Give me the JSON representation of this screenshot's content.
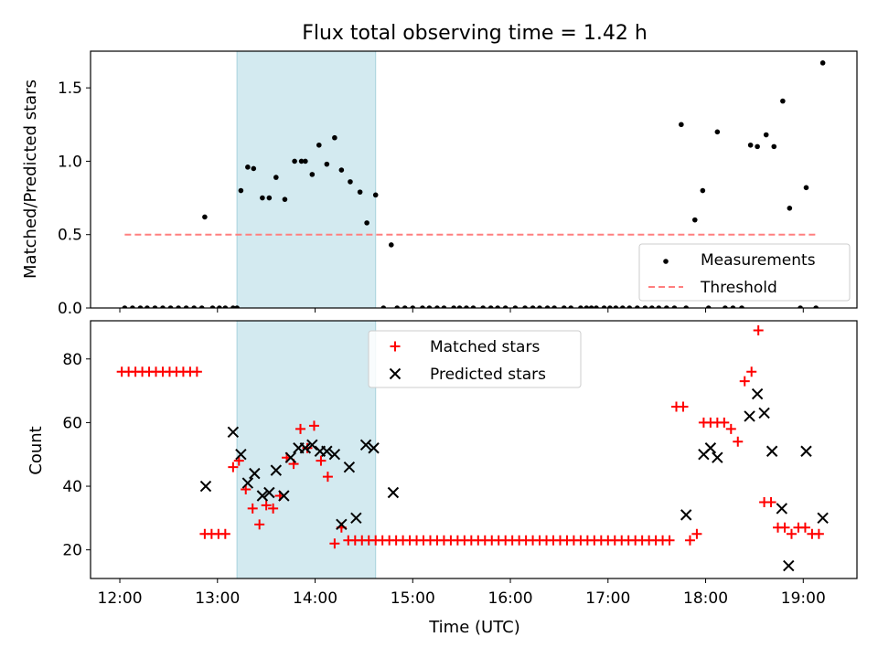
{
  "title": "Flux total observing time = 1.42 h",
  "chart_data": [
    {
      "type": "scatter",
      "ylabel": "Matched/Predicted stars",
      "xlabel": "",
      "x_unit": "hours (UTC)",
      "xlim": [
        11.7,
        19.55
      ],
      "ylim": [
        0,
        1.75
      ],
      "yticks": [
        0.0,
        0.5,
        1.0,
        1.5
      ],
      "yticklabels": [
        "0.0",
        "0.5",
        "1.0",
        "1.5"
      ],
      "shaded_span": [
        13.2,
        14.62
      ],
      "shade_color": "#d3eaf0",
      "threshold": {
        "name": "Threshold",
        "y": 0.5,
        "x": [
          12.05,
          19.15
        ],
        "color": "#ff7f7f",
        "style": "dashed"
      },
      "legend": {
        "loc": "lower right",
        "entries": [
          "Measurements",
          "Threshold"
        ]
      },
      "series": [
        {
          "name": "Measurements",
          "marker": "dot",
          "color": "#000000",
          "x": [
            12.05,
            12.13,
            12.21,
            12.28,
            12.36,
            12.44,
            12.52,
            12.6,
            12.68,
            12.76,
            12.84,
            12.87,
            12.95,
            13.02,
            13.08,
            13.16,
            13.2,
            13.24,
            13.31,
            13.37,
            13.46,
            13.53,
            13.6,
            13.69,
            13.79,
            13.86,
            13.9,
            13.97,
            14.04,
            14.12,
            14.2,
            14.27,
            14.36,
            14.46,
            14.53,
            14.62,
            14.7,
            14.78,
            14.84,
            14.92,
            15.0,
            15.1,
            15.17,
            15.25,
            15.32,
            15.42,
            15.48,
            15.55,
            15.62,
            15.72,
            15.8,
            15.87,
            15.95,
            16.05,
            16.15,
            16.23,
            16.3,
            16.38,
            16.45,
            16.55,
            16.62,
            16.72,
            16.78,
            16.83,
            16.88,
            16.96,
            17.02,
            17.08,
            17.15,
            17.22,
            17.3,
            17.38,
            17.45,
            17.52,
            17.6,
            17.68,
            17.75,
            17.8,
            17.89,
            17.97,
            18.03,
            18.12,
            18.2,
            18.28,
            18.37,
            18.46,
            18.53,
            18.62,
            18.7,
            18.79,
            18.86,
            18.97,
            19.03,
            19.13,
            19.2
          ],
          "y": [
            0,
            0,
            0,
            0,
            0,
            0,
            0,
            0,
            0,
            0,
            0,
            0.62,
            0,
            0,
            0,
            0,
            0,
            0.8,
            0.96,
            0.95,
            0.75,
            0.75,
            0.89,
            0.74,
            1.0,
            1.0,
            1.0,
            0.91,
            1.11,
            0.98,
            1.16,
            0.94,
            0.86,
            0.79,
            0.58,
            0.77,
            0,
            0.43,
            0,
            0,
            0,
            0,
            0,
            0,
            0,
            0,
            0,
            0,
            0,
            0,
            0,
            0,
            0,
            0,
            0,
            0,
            0,
            0,
            0,
            0,
            0,
            0,
            0,
            0,
            0,
            0,
            0,
            0,
            0,
            0,
            0,
            0,
            0,
            0,
            0,
            0,
            1.25,
            0,
            0.6,
            0.8,
            0,
            1.2,
            0,
            0,
            0,
            1.11,
            1.1,
            1.18,
            1.1,
            1.41,
            0.68,
            0,
            0.82,
            0,
            1.67
          ]
        }
      ]
    },
    {
      "type": "scatter",
      "xlabel": "Time (UTC)",
      "ylabel": "Count",
      "xlim": [
        11.7,
        19.55
      ],
      "ylim": [
        11,
        92
      ],
      "xticks": [
        12,
        13,
        14,
        15,
        16,
        17,
        18,
        19
      ],
      "xticklabels": [
        "12:00",
        "13:00",
        "14:00",
        "15:00",
        "16:00",
        "17:00",
        "18:00",
        "19:00"
      ],
      "yticks": [
        20,
        40,
        60,
        80
      ],
      "yticklabels": [
        "20",
        "40",
        "60",
        "80"
      ],
      "shaded_span": [
        13.2,
        14.62
      ],
      "legend": {
        "loc": "upper center",
        "entries": [
          "Matched stars",
          "Predicted stars"
        ]
      },
      "series": [
        {
          "name": "Matched stars",
          "marker": "plus",
          "color": "#ff0000",
          "x": [
            12.02,
            12.09,
            12.16,
            12.23,
            12.3,
            12.37,
            12.44,
            12.51,
            12.58,
            12.65,
            12.72,
            12.79,
            12.87,
            12.94,
            13.01,
            13.08,
            13.16,
            13.22,
            13.29,
            13.36,
            13.43,
            13.5,
            13.57,
            13.64,
            13.71,
            13.78,
            13.85,
            13.92,
            13.99,
            14.06,
            14.13,
            14.2,
            14.27,
            14.34,
            14.41,
            14.48,
            14.55,
            14.62,
            14.69,
            14.76,
            14.83,
            14.9,
            14.97,
            15.04,
            15.11,
            15.18,
            15.25,
            15.32,
            15.39,
            15.46,
            15.53,
            15.6,
            15.67,
            15.74,
            15.81,
            15.88,
            15.95,
            16.02,
            16.09,
            16.16,
            16.23,
            16.3,
            16.37,
            16.44,
            16.51,
            16.58,
            16.65,
            16.72,
            16.79,
            16.86,
            16.93,
            17.0,
            17.07,
            17.14,
            17.21,
            17.28,
            17.35,
            17.42,
            17.49,
            17.56,
            17.63,
            17.7,
            17.77,
            17.84,
            17.91,
            17.98,
            18.05,
            18.12,
            18.19,
            18.26,
            18.33,
            18.4,
            18.47,
            18.54,
            18.6,
            18.67,
            18.74,
            18.81,
            18.88,
            18.95,
            19.02,
            19.09,
            19.16
          ],
          "y": [
            76,
            76,
            76,
            76,
            76,
            76,
            76,
            76,
            76,
            76,
            76,
            76,
            25,
            25,
            25,
            25,
            46,
            48,
            39,
            33,
            28,
            34,
            33,
            37,
            49,
            47,
            58,
            52,
            59,
            48,
            43,
            22,
            27,
            23,
            23,
            23,
            23,
            23,
            23,
            23,
            23,
            23,
            23,
            23,
            23,
            23,
            23,
            23,
            23,
            23,
            23,
            23,
            23,
            23,
            23,
            23,
            23,
            23,
            23,
            23,
            23,
            23,
            23,
            23,
            23,
            23,
            23,
            23,
            23,
            23,
            23,
            23,
            23,
            23,
            23,
            23,
            23,
            23,
            23,
            23,
            23,
            65,
            65,
            23,
            25,
            60,
            60,
            60,
            60,
            58,
            54,
            73,
            76,
            89,
            35,
            35,
            27,
            27,
            25,
            27,
            27,
            25,
            25
          ]
        },
        {
          "name": "Predicted stars",
          "marker": "x",
          "color": "#000000",
          "x": [
            12.88,
            13.16,
            13.24,
            13.31,
            13.38,
            13.46,
            13.53,
            13.6,
            13.68,
            13.75,
            13.83,
            13.9,
            13.97,
            14.05,
            14.12,
            14.2,
            14.27,
            14.35,
            14.42,
            14.52,
            14.6,
            14.8,
            17.8,
            17.98,
            18.05,
            18.12,
            18.45,
            18.53,
            18.6,
            18.68,
            18.78,
            18.85,
            19.03,
            19.2
          ],
          "y": [
            40,
            57,
            50,
            41,
            44,
            37,
            38,
            45,
            37,
            49,
            52,
            52,
            53,
            51,
            51,
            50,
            28,
            46,
            30,
            53,
            52,
            38,
            31,
            50,
            52,
            49,
            62,
            69,
            63,
            51,
            33,
            15,
            51,
            30
          ]
        }
      ]
    }
  ]
}
